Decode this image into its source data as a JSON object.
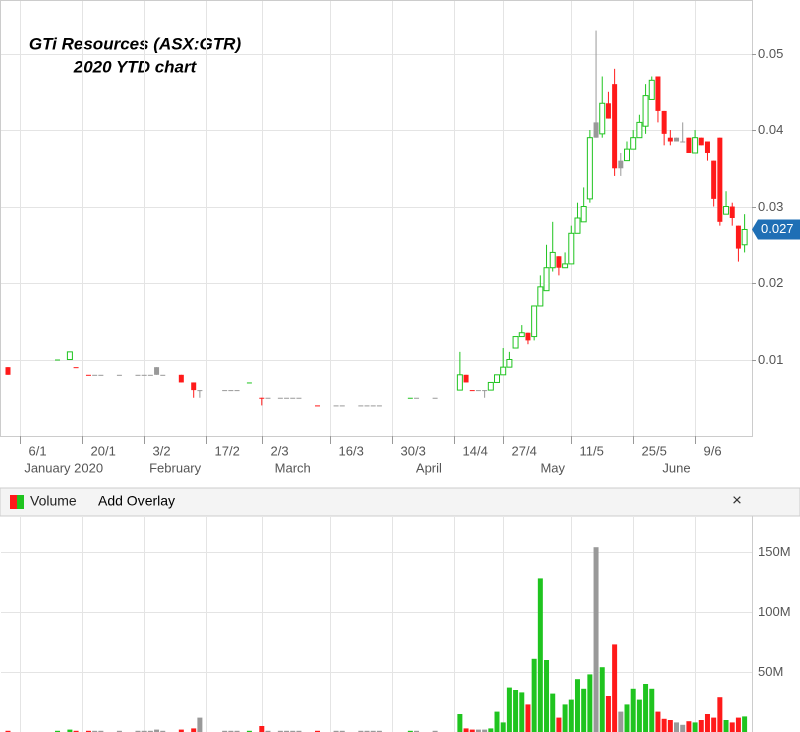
{
  "chart_data": [
    {
      "type": "candlestick",
      "title": "GTi Resources (ASX:GTR)",
      "subtitle": "2020 YTD chart",
      "categories": [
        null,
        null,
        "6/1",
        null,
        null,
        null,
        null,
        null,
        null,
        null,
        null,
        null,
        "20/1",
        null,
        null,
        null,
        null,
        null,
        null,
        null,
        null,
        null,
        "3/2",
        null,
        null,
        null,
        null,
        null,
        null,
        null,
        null,
        null,
        "17/2",
        null,
        null,
        null,
        null,
        null,
        null,
        null,
        null,
        "2/3",
        null,
        null,
        null,
        null,
        null,
        null,
        null,
        null,
        null,
        null,
        "16/3",
        null,
        null,
        null,
        null,
        null,
        null,
        null,
        null,
        null,
        "30/3",
        null,
        null,
        null,
        null,
        null,
        null,
        null,
        null,
        null,
        "14/4",
        null,
        null,
        null,
        null,
        null,
        null,
        null,
        "27/4",
        null,
        null,
        null,
        null,
        null,
        null,
        null,
        null,
        null,
        null,
        "11/5",
        null,
        null,
        null,
        null,
        null,
        null,
        null,
        null,
        null,
        "25/5",
        null,
        null,
        null,
        null,
        null,
        null,
        null,
        null,
        null,
        "9/6",
        null,
        null,
        null,
        null,
        null,
        null,
        null,
        null
      ],
      "month_labels": [
        null,
        null,
        null,
        null,
        null,
        null,
        null,
        null,
        null,
        "January 2020",
        null,
        null,
        null,
        null,
        null,
        null,
        null,
        null,
        null,
        null,
        null,
        null,
        null,
        null,
        null,
        null,
        null,
        "February",
        null,
        null,
        null,
        null,
        null,
        null,
        null,
        null,
        null,
        null,
        null,
        null,
        null,
        null,
        null,
        null,
        null,
        null,
        "March",
        null,
        null,
        null,
        null,
        null,
        null,
        null,
        null,
        null,
        null,
        null,
        null,
        null,
        null,
        null,
        null,
        null,
        null,
        null,
        null,
        null,
        "April",
        null,
        null,
        null,
        null,
        null,
        null,
        null,
        null,
        null,
        null,
        null,
        null,
        null,
        null,
        null,
        null,
        null,
        null,
        null,
        "May",
        null,
        null,
        null,
        null,
        null,
        null,
        null,
        null,
        null,
        null,
        null,
        null,
        null,
        null,
        null,
        null,
        null,
        null,
        null,
        "June",
        null,
        null,
        null,
        null,
        null,
        null,
        null,
        null,
        null,
        null,
        null
      ],
      "open": [
        0.009,
        null,
        null,
        null,
        null,
        null,
        null,
        null,
        0.01,
        null,
        0.01,
        0.009,
        null,
        0.008,
        0.008,
        0.008,
        null,
        null,
        0.008,
        null,
        null,
        0.008,
        0.008,
        0.008,
        0.009,
        0.008,
        null,
        null,
        0.008,
        null,
        0.007,
        0.006,
        null,
        null,
        null,
        0.006,
        0.006,
        0.006,
        null,
        0.007,
        null,
        0.005,
        0.005,
        null,
        0.005,
        0.005,
        0.005,
        0.005,
        null,
        null,
        0.004,
        null,
        null,
        0.004,
        0.004,
        null,
        null,
        0.004,
        0.004,
        0.004,
        0.004,
        null,
        null,
        null,
        null,
        0.005,
        0.005,
        null,
        null,
        0.005,
        null,
        null,
        null,
        0.006,
        0.008,
        0.006,
        0.006,
        0.006,
        0.006,
        0.007,
        0.008,
        0.009,
        0.0115,
        0.013,
        0.0135,
        0.013,
        0.017,
        0.019,
        0.022,
        0.0235,
        0.022,
        0.0225,
        0.0265,
        0.028,
        0.031,
        0.041,
        0.0395,
        0.0435,
        0.046,
        0.036,
        0.036,
        0.0375,
        0.039,
        0.0405,
        0.044,
        0.047,
        0.0425,
        0.039,
        0.039,
        0.0385,
        0.039,
        0.037,
        0.039,
        0.0385,
        0.036,
        0.039,
        0.029,
        0.03,
        0.0275,
        0.025
      ],
      "high": [
        0.009,
        null,
        null,
        null,
        null,
        null,
        null,
        null,
        0.01,
        null,
        0.011,
        0.009,
        null,
        0.008,
        0.008,
        0.008,
        null,
        null,
        0.008,
        null,
        null,
        0.008,
        0.008,
        0.008,
        0.009,
        0.008,
        null,
        null,
        0.008,
        null,
        0.007,
        0.006,
        null,
        null,
        null,
        0.006,
        0.006,
        0.006,
        null,
        0.007,
        null,
        0.005,
        0.005,
        null,
        0.005,
        0.005,
        0.005,
        0.005,
        null,
        null,
        0.004,
        null,
        null,
        0.004,
        0.004,
        null,
        null,
        0.004,
        0.004,
        0.004,
        0.004,
        null,
        null,
        null,
        null,
        0.005,
        0.005,
        null,
        null,
        0.005,
        null,
        null,
        null,
        0.011,
        0.008,
        0.006,
        0.006,
        0.006,
        0.007,
        0.008,
        0.0115,
        0.011,
        0.013,
        0.0145,
        0.0135,
        0.017,
        0.021,
        0.025,
        0.028,
        0.0235,
        0.024,
        0.0275,
        0.0305,
        0.0325,
        0.04,
        0.053,
        0.047,
        0.045,
        0.048,
        0.037,
        0.0385,
        0.04,
        0.042,
        0.046,
        0.047,
        0.047,
        0.0425,
        0.04,
        0.039,
        0.041,
        0.039,
        0.04,
        0.039,
        0.0385,
        0.036,
        0.039,
        0.032,
        0.0305,
        0.0275,
        0.029
      ],
      "low": [
        0.008,
        null,
        null,
        null,
        null,
        null,
        null,
        null,
        0.01,
        null,
        0.01,
        0.009,
        null,
        0.008,
        0.008,
        0.008,
        null,
        null,
        0.008,
        null,
        null,
        0.008,
        0.008,
        0.008,
        0.008,
        0.008,
        null,
        null,
        0.007,
        null,
        0.005,
        0.005,
        null,
        null,
        null,
        0.006,
        0.006,
        0.006,
        null,
        0.007,
        null,
        0.004,
        0.005,
        null,
        0.005,
        0.005,
        0.005,
        0.005,
        null,
        null,
        0.004,
        null,
        null,
        0.004,
        0.004,
        null,
        null,
        0.004,
        0.004,
        0.004,
        0.004,
        null,
        null,
        null,
        null,
        0.005,
        0.005,
        null,
        null,
        0.005,
        null,
        null,
        null,
        0.006,
        0.007,
        0.006,
        0.006,
        0.005,
        0.006,
        0.007,
        0.008,
        0.009,
        0.0115,
        0.013,
        0.012,
        0.0125,
        0.017,
        0.019,
        0.0215,
        0.021,
        0.022,
        0.0225,
        0.0265,
        0.028,
        0.0305,
        0.039,
        0.039,
        0.0415,
        0.034,
        0.034,
        0.036,
        0.0375,
        0.039,
        0.0395,
        0.044,
        0.041,
        0.038,
        0.038,
        0.0385,
        0.0385,
        0.037,
        0.037,
        0.038,
        0.036,
        0.03,
        0.0275,
        0.029,
        0.0275,
        0.0228,
        0.024
      ],
      "close": [
        0.008,
        null,
        null,
        null,
        null,
        null,
        null,
        null,
        0.01,
        null,
        0.011,
        0.009,
        null,
        0.008,
        0.008,
        0.008,
        null,
        null,
        0.008,
        null,
        null,
        0.008,
        0.008,
        0.008,
        0.008,
        0.008,
        null,
        null,
        0.007,
        null,
        0.006,
        0.006,
        null,
        null,
        null,
        0.006,
        0.006,
        0.006,
        null,
        0.007,
        null,
        0.005,
        0.005,
        null,
        0.005,
        0.005,
        0.005,
        0.005,
        null,
        null,
        0.004,
        null,
        null,
        0.004,
        0.004,
        null,
        null,
        0.004,
        0.004,
        0.004,
        0.004,
        null,
        null,
        null,
        null,
        0.005,
        0.005,
        null,
        null,
        0.005,
        null,
        null,
        null,
        0.008,
        0.007,
        0.006,
        0.006,
        0.006,
        0.007,
        0.008,
        0.009,
        0.01,
        0.013,
        0.0135,
        0.0125,
        0.017,
        0.0195,
        0.022,
        0.024,
        0.022,
        0.0225,
        0.0265,
        0.0285,
        0.03,
        0.039,
        0.039,
        0.0435,
        0.0415,
        0.035,
        0.035,
        0.0375,
        0.039,
        0.041,
        0.0445,
        0.0465,
        0.0425,
        0.0395,
        0.0385,
        0.0385,
        0.0385,
        0.037,
        0.039,
        0.038,
        0.037,
        0.031,
        0.028,
        0.03,
        0.0285,
        0.0245,
        0.027
      ],
      "up_color": "#1fc41f",
      "down_color": "#ff1a1a",
      "flat_color": "#999999",
      "price_tag_color": "#1f6fb5",
      "ylim": [
        0,
        0.057
      ],
      "yticks": [
        0.01,
        0.02,
        0.03,
        0.04,
        0.05
      ],
      "grid": true
    },
    {
      "type": "bar",
      "values": [
        1000000,
        null,
        null,
        null,
        null,
        null,
        null,
        null,
        1000000,
        null,
        2000000,
        1000000,
        null,
        1000000,
        1000000,
        1000000,
        null,
        null,
        1000000,
        null,
        null,
        1000000,
        1000000,
        1000000,
        2000000,
        1000000,
        null,
        null,
        2000000,
        null,
        3000000,
        12000000,
        null,
        null,
        null,
        1000000,
        1000000,
        1000000,
        null,
        1000000,
        null,
        5000000,
        1000000,
        null,
        1000000,
        1000000,
        1000000,
        1000000,
        null,
        null,
        1000000,
        null,
        null,
        1000000,
        1000000,
        null,
        null,
        1000000,
        1000000,
        1000000,
        1000000,
        null,
        null,
        null,
        null,
        1000000,
        1000000,
        null,
        null,
        1000000,
        null,
        null,
        null,
        15000000,
        3000000,
        2000000,
        2000000,
        2000000,
        3000000,
        17000000,
        8000000,
        37000000,
        35000000,
        33000000,
        23000000,
        61000000,
        128000000,
        60000000,
        32000000,
        12000000,
        23000000,
        27000000,
        44000000,
        36000000,
        48000000,
        154000000,
        54000000,
        30000000,
        73000000,
        17000000,
        23000000,
        36000000,
        27000000,
        40000000,
        36000000,
        17000000,
        11000000,
        10000000,
        8000000,
        6000000,
        9000000,
        8000000,
        10000000,
        15000000,
        12000000,
        29000000,
        10000000,
        8000000,
        12000000,
        13000000
      ],
      "ylim": [
        0,
        180000000
      ],
      "yticks": [
        {
          "value": 50000000,
          "label": "50M"
        },
        {
          "value": 100000000,
          "label": "100M"
        },
        {
          "value": 150000000,
          "label": "150M"
        }
      ],
      "grid": true
    }
  ],
  "volume_panel": {
    "title": "Volume",
    "button": "Add Overlay",
    "close": "×"
  }
}
